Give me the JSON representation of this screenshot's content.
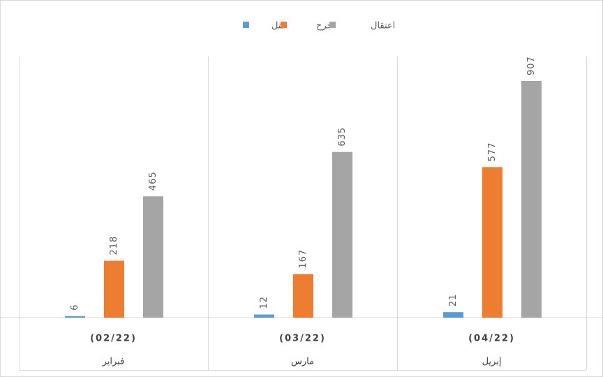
{
  "chart_data": {
    "type": "bar",
    "title": "",
    "xlabel": "",
    "ylabel": "",
    "ylim": [
      0,
      1000
    ],
    "grid": false,
    "legend_position": "top",
    "categories": [
      {
        "code": "(02/22)",
        "month": "فبراير"
      },
      {
        "code": "(03/22)",
        "month": "مارس"
      },
      {
        "code": "(04/22)",
        "month": "إبريل"
      }
    ],
    "series": [
      {
        "name": "قتل",
        "color": "#5B9BD5",
        "values": [
          6,
          12,
          21
        ]
      },
      {
        "name": "جرح",
        "color": "#ED7D31",
        "values": [
          218,
          167,
          577
        ]
      },
      {
        "name": "اعتقال",
        "color": "#A5A5A5",
        "values": [
          465,
          635,
          907
        ]
      }
    ]
  }
}
